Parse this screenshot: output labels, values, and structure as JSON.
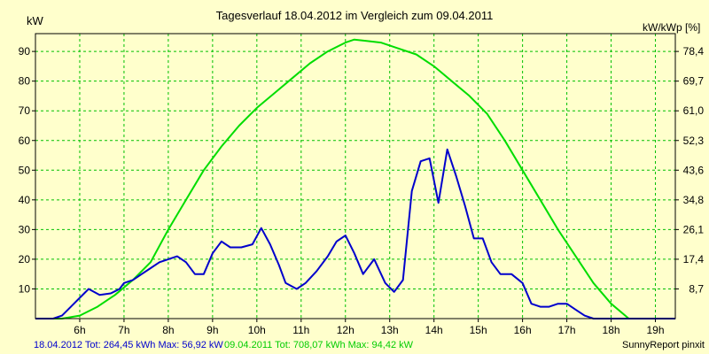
{
  "chart_data": {
    "type": "line",
    "title": "Tagesverlauf 18.04.2012 im Vergleich zum 09.04.2011",
    "ylabel_left": "kW",
    "ylabel_right": "kW/kWp [%]",
    "x_ticks": [
      "6h",
      "7h",
      "8h",
      "9h",
      "10h",
      "11h",
      "12h",
      "13h",
      "14h",
      "15h",
      "16h",
      "17h",
      "18h",
      "19h"
    ],
    "xlim": [
      5.0,
      19.45
    ],
    "ylim": [
      0,
      96
    ],
    "y_ticks": [
      10,
      20,
      30,
      40,
      50,
      60,
      70,
      80,
      90
    ],
    "y_ticks_right": [
      "8,7",
      "17,4",
      "26,1",
      "34,8",
      "43,6",
      "52,3",
      "61,0",
      "69,7",
      "78,4"
    ],
    "grid": true,
    "colors": {
      "background": "#ffffcc",
      "grid": "#00c000",
      "axis": "#000000"
    },
    "series": [
      {
        "name": "18.04.2012",
        "color": "#0000cc",
        "x": [
          5.0,
          5.4,
          5.6,
          5.8,
          6.0,
          6.2,
          6.45,
          6.7,
          6.9,
          7.0,
          7.2,
          7.4,
          7.6,
          7.8,
          8.0,
          8.2,
          8.4,
          8.6,
          8.8,
          9.0,
          9.2,
          9.4,
          9.65,
          9.9,
          10.1,
          10.3,
          10.5,
          10.65,
          10.9,
          11.1,
          11.35,
          11.6,
          11.8,
          12.0,
          12.2,
          12.4,
          12.65,
          12.9,
          13.1,
          13.3,
          13.5,
          13.7,
          13.9,
          14.1,
          14.3,
          14.5,
          14.7,
          14.9,
          15.1,
          15.3,
          15.5,
          15.75,
          16.0,
          16.2,
          16.4,
          16.6,
          16.8,
          17.0,
          17.2,
          17.4,
          17.6,
          17.8,
          18.0,
          18.2,
          18.45,
          18.6,
          18.8,
          19.0,
          19.45
        ],
        "values": [
          0,
          0,
          1,
          4,
          7,
          10,
          8,
          8.5,
          10,
          12,
          13,
          15,
          17,
          19,
          20,
          21,
          19,
          15,
          15,
          22,
          26,
          24,
          24,
          25,
          30.5,
          25,
          18,
          12,
          10,
          12,
          16,
          21,
          26,
          28,
          22,
          15,
          20,
          12,
          9,
          13,
          43,
          53,
          54,
          39,
          57,
          48,
          38,
          27,
          27,
          19,
          15,
          15,
          12,
          5,
          4,
          4,
          5,
          5,
          3,
          1,
          0,
          0,
          0,
          0,
          0,
          0,
          0,
          0,
          0
        ]
      },
      {
        "name": "09.04.2011",
        "color": "#00dd00",
        "x": [
          5.0,
          5.6,
          6.0,
          6.4,
          6.8,
          7.2,
          7.6,
          8.0,
          8.4,
          8.8,
          9.2,
          9.6,
          10.0,
          10.4,
          10.8,
          11.2,
          11.6,
          12.0,
          12.2,
          12.5,
          12.8,
          13.2,
          13.6,
          14.0,
          14.4,
          14.8,
          15.2,
          15.6,
          16.0,
          16.4,
          16.8,
          17.2,
          17.6,
          18.0,
          18.4,
          18.8,
          19.0,
          19.45
        ],
        "values": [
          0,
          0,
          1,
          4,
          8,
          13,
          19,
          30,
          40,
          50,
          58,
          65,
          71,
          76,
          81,
          86,
          90,
          93,
          94,
          93.5,
          93,
          91,
          89,
          85,
          80,
          75,
          69,
          60,
          50,
          40,
          30,
          21,
          12,
          5,
          0,
          0,
          0,
          0
        ]
      }
    ]
  },
  "footer": {
    "summary_series1": "18.04.2012 Tot: 264,45 kWh Max: 56,92 kW",
    "summary_series2": "09.04.2011 Tot: 708,07 kWh Max: 94,42 kW",
    "credit": "SunnyReport pinxit"
  }
}
